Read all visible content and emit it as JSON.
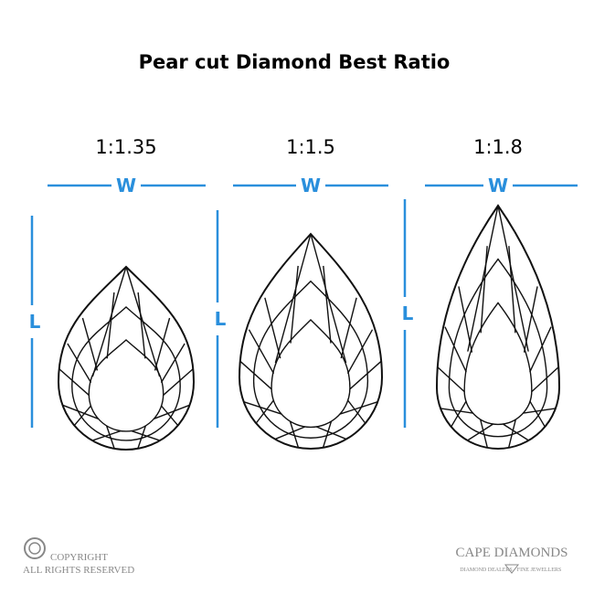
{
  "title": "Pear cut Diamond Best Ratio",
  "diagrams": [
    {
      "ratio": "1:1.35",
      "width_label": "W",
      "length_label": "L"
    },
    {
      "ratio": "1:1.5",
      "width_label": "W",
      "length_label": "L"
    },
    {
      "ratio": "1:1.8",
      "width_label": "W",
      "length_label": "L"
    }
  ],
  "footer": {
    "copyright": "COPYRIGHT",
    "rights": "ALL RIGHTS RESERVED",
    "brand": "CAPE DIAMONDS",
    "brand_left": "DIAMOND DEALERS",
    "brand_right": "FINE JEWELLERS"
  }
}
